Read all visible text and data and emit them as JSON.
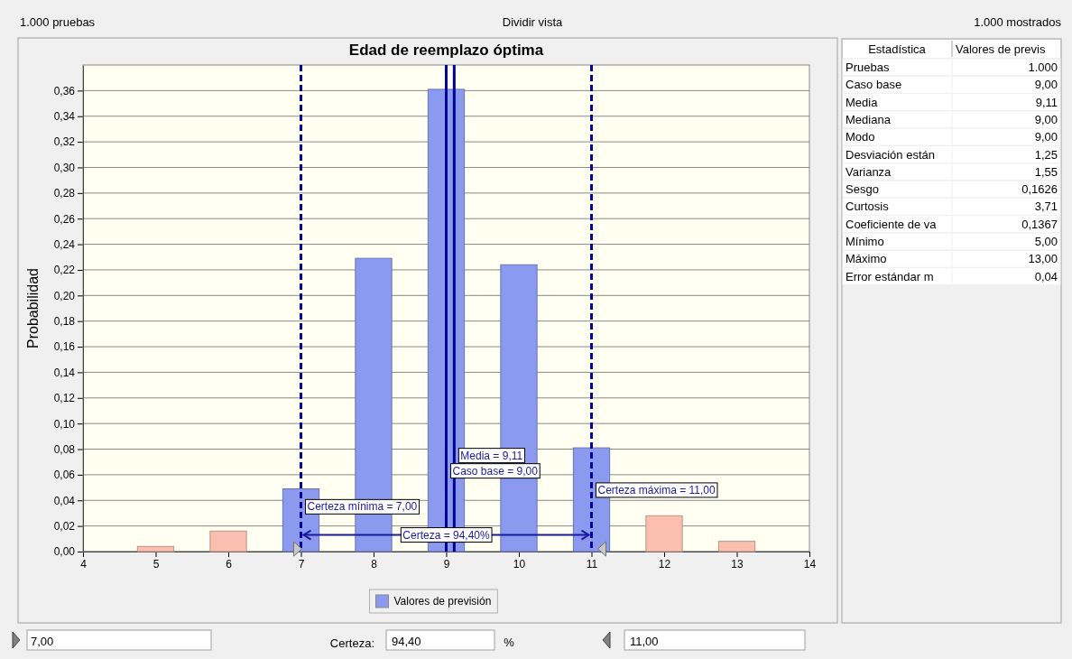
{
  "chart_data": [
    {
      "type": "bar",
      "title": "Edad de reemplazo óptima",
      "ylabel": "Probabilidad",
      "x": [
        5,
        6,
        7,
        8,
        9,
        10,
        11,
        12,
        13
      ],
      "series": [
        {
          "name": "Valores de previsión",
          "color": "#8b99ee",
          "values": [
            0.004,
            0.016,
            0.049,
            0.229,
            0.361,
            0.224,
            0.081,
            0.028,
            0.008
          ],
          "colors": [
            "#fbbfb0",
            "#fbbfb0",
            "#8b99ee",
            "#8b99ee",
            "#8b99ee",
            "#8b99ee",
            "#8b99ee",
            "#fbbfb0",
            "#fbbfb0"
          ]
        }
      ],
      "xlim": [
        4,
        14
      ],
      "xticks": [
        4,
        5,
        6,
        7,
        8,
        9,
        10,
        11,
        12,
        13,
        14
      ],
      "ylim": [
        0,
        0.38
      ],
      "yticks": [
        {
          "value": 0,
          "label": "0,00"
        },
        {
          "value": 0.02,
          "label": "0,02"
        },
        {
          "value": 0.04,
          "label": "0,04"
        },
        {
          "value": 0.06,
          "label": "0,06"
        },
        {
          "value": 0.08,
          "label": "0,08"
        },
        {
          "value": 0.1,
          "label": "0,10"
        },
        {
          "value": 0.12,
          "label": "0,12"
        },
        {
          "value": 0.14,
          "label": "0,14"
        },
        {
          "value": 0.16,
          "label": "0,16"
        },
        {
          "value": 0.18,
          "label": "0,18"
        },
        {
          "value": 0.2,
          "label": "0,20"
        },
        {
          "value": 0.22,
          "label": "0,22"
        },
        {
          "value": 0.24,
          "label": "0,24"
        },
        {
          "value": 0.26,
          "label": "0,26"
        },
        {
          "value": 0.28,
          "label": "0,28"
        },
        {
          "value": 0.3,
          "label": "0,30"
        },
        {
          "value": 0.32,
          "label": "0,32"
        },
        {
          "value": 0.34,
          "label": "0,34"
        },
        {
          "value": 0.36,
          "label": "0,36"
        }
      ],
      "grid": "y",
      "legend": "bottom",
      "ref_lines": [
        {
          "axis": "x",
          "value": 7,
          "label": "Certeza mínima = 7,00",
          "color": "#00009c",
          "line_style": "dashed"
        },
        {
          "axis": "x",
          "value": 11,
          "label": "Certeza máxima = 11,00",
          "color": "#00009c",
          "line_style": "dashed"
        },
        {
          "axis": "x",
          "value": 9,
          "label": "Caso base = 9,00",
          "color": "#00009c",
          "line_style": "solid"
        },
        {
          "axis": "x",
          "value": 9.11,
          "label": "Media = 9,11",
          "color": "#00009c",
          "line_style": "solid"
        }
      ],
      "annotations": [
        {
          "text": "Certeza = 94,40%",
          "x": 9,
          "y": 0.013
        }
      ]
    },
    {
      "type": "other",
      "title": "Estadística",
      "subtitle": "Valores de previs",
      "categories": [
        "Pruebas",
        "Caso base",
        "Media",
        "Mediana",
        "Modo",
        "Desviación están",
        "Varianza",
        "Sesgo",
        "Curtosis",
        "Coeficiente de va",
        "Mínimo",
        "Máximo",
        "Error estándar m"
      ],
      "value_labels": [
        "1.000",
        "9,00",
        "9,11",
        "9,00",
        "9,00",
        "1,25",
        "1,55",
        "0,1626",
        "3,71",
        "0,1367",
        "5,00",
        "13,00",
        "0,04"
      ]
    },
    {
      "type": "other",
      "annotations": [
        "1.000 pruebas",
        "Dividir vista",
        "1.000 mostrados",
        "7,00",
        "Certeza:",
        "94,40",
        "%",
        "11,00"
      ]
    }
  ]
}
